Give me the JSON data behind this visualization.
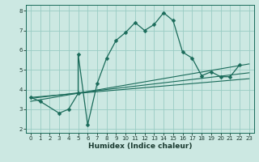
{
  "xlabel": "Humidex (Indice chaleur)",
  "ylabel": "",
  "bg_color": "#cce8e2",
  "grid_color": "#99ccc4",
  "line_color": "#1a6b5a",
  "xlim": [
    -0.5,
    23.5
  ],
  "ylim": [
    1.8,
    8.3
  ],
  "xticks": [
    0,
    1,
    2,
    3,
    4,
    5,
    6,
    7,
    8,
    9,
    10,
    11,
    12,
    13,
    14,
    15,
    16,
    17,
    18,
    19,
    20,
    21,
    22,
    23
  ],
  "yticks": [
    2,
    3,
    4,
    5,
    6,
    7,
    8
  ],
  "series": [
    {
      "x": [
        0,
        1,
        3,
        4,
        5,
        5,
        6,
        7,
        8,
        9,
        10,
        11,
        12,
        13,
        14,
        15,
        16,
        17,
        18,
        19,
        20,
        21,
        22
      ],
      "y": [
        3.6,
        3.4,
        2.8,
        3.0,
        3.8,
        5.8,
        2.2,
        4.3,
        5.6,
        6.5,
        6.9,
        7.4,
        7.0,
        7.3,
        7.9,
        7.5,
        5.9,
        5.6,
        4.7,
        4.9,
        4.65,
        4.65,
        5.25
      ],
      "marker": "D",
      "ms": 2.5
    },
    {
      "x": [
        0,
        23
      ],
      "y": [
        3.55,
        4.85
      ],
      "lw": 0.8
    },
    {
      "x": [
        0,
        23
      ],
      "y": [
        3.4,
        5.3
      ],
      "lw": 0.8
    },
    {
      "x": [
        0,
        23
      ],
      "y": [
        3.6,
        4.55
      ],
      "lw": 0.8
    }
  ]
}
